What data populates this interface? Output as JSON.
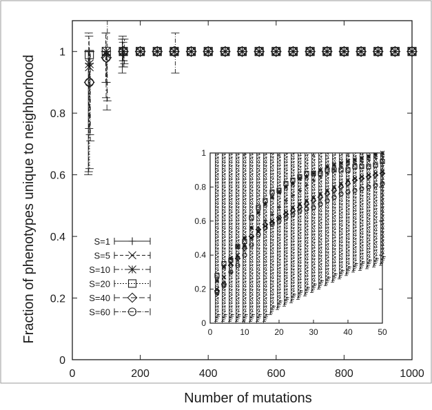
{
  "chart_data": [
    {
      "type": "scatter",
      "panel": "main",
      "xlabel": "Number of mutations",
      "ylabel": "Fraction of phenotypes unique to neighborhood",
      "xlim": [
        0,
        1000
      ],
      "ylim": [
        0,
        1.1
      ],
      "xticks": [
        "0",
        "200",
        "400",
        "600",
        "800",
        "1000"
      ],
      "yticks": [
        "0",
        "0.2",
        "0.4",
        "0.6",
        "0.8",
        "1"
      ],
      "grid": false,
      "legend": "bottom-left",
      "series": [
        {
          "name": "S=1",
          "marker": "plus",
          "dash": "",
          "points": [
            {
              "x": 50,
              "y": 1.0,
              "lo": 0.6,
              "hi": 1.0
            },
            {
              "x": 100,
              "y": 1.0,
              "lo": 1.0,
              "hi": 1.0
            },
            {
              "x": 150,
              "y": 1.0,
              "lo": 0.93,
              "hi": 1.04
            }
          ]
        },
        {
          "name": "S=5",
          "marker": "x",
          "dash": "5,3",
          "points": [
            {
              "x": 50,
              "y": 0.95,
              "lo": 0.61,
              "hi": 1.06
            },
            {
              "x": 100,
              "y": 1.0,
              "lo": 0.9,
              "hi": 1.06
            },
            {
              "x": 150,
              "y": 1.0,
              "lo": 0.95,
              "hi": 1.05
            }
          ]
        },
        {
          "name": "S=10",
          "marker": "asterisk",
          "dash": "7,3,2,3",
          "points": [
            {
              "x": 50,
              "y": 0.96,
              "lo": 0.75,
              "hi": 1.05
            },
            {
              "x": 100,
              "y": 0.99,
              "lo": 0.85,
              "hi": 1.06
            },
            {
              "x": 150,
              "y": 1.0,
              "lo": 0.97,
              "hi": 1.03
            }
          ]
        },
        {
          "name": "S=20",
          "marker": "square",
          "dash": "2,2",
          "points": [
            {
              "x": 50,
              "y": 0.99,
              "lo": 0.62,
              "hi": 1.0
            },
            {
              "x": 100,
              "y": 1.0,
              "lo": 0.9,
              "hi": 1.0
            },
            {
              "x": 150,
              "y": 1.0,
              "lo": 0.97,
              "hi": 1.0
            }
          ]
        },
        {
          "name": "S=40",
          "marker": "diamond",
          "dash": "8,4",
          "points": [
            {
              "x": 50,
              "y": 0.9,
              "lo": 0.73,
              "hi": 1.0
            },
            {
              "x": 100,
              "y": 0.98,
              "lo": 0.81,
              "hi": 1.0
            },
            {
              "x": 150,
              "y": 1.0,
              "lo": 0.95,
              "hi": 1.0
            }
          ]
        },
        {
          "name": "S=60",
          "marker": "circle",
          "dash": "6,2,1,2",
          "points": [
            {
              "x": 50,
              "y": 0.9,
              "lo": 0.71,
              "hi": 1.0
            },
            {
              "x": 100,
              "y": 0.98,
              "lo": 0.84,
              "hi": 1.1
            },
            {
              "x": 150,
              "y": 1.0,
              "lo": 0.96,
              "hi": 1.04
            },
            {
              "x": 300,
              "y": 1.0,
              "lo": 0.93,
              "hi": 1.06
            }
          ]
        }
      ],
      "constant_segment": {
        "y": 1.0,
        "x_start": 200,
        "x_end": 1000,
        "x_step": 50
      }
    },
    {
      "type": "scatter",
      "panel": "inset",
      "xlim": [
        0,
        50
      ],
      "ylim": [
        0,
        1
      ],
      "xticks": [
        "0",
        "10",
        "20",
        "30",
        "40",
        "50"
      ],
      "yticks": [
        "0",
        "0.2",
        "0.4",
        "0.6",
        "0.8",
        "1"
      ],
      "x": [
        2,
        4,
        6,
        8,
        10,
        12,
        14,
        16,
        18,
        20,
        22,
        24,
        26,
        28,
        30,
        32,
        34,
        36,
        38,
        40,
        42,
        44,
        46,
        48,
        50
      ],
      "series": [
        {
          "name": "S=1",
          "marker": "plus",
          "values": [
            0.17,
            0.24,
            0.3,
            0.38,
            0.45,
            0.5,
            0.55,
            0.6,
            0.64,
            0.68,
            0.72,
            0.75,
            0.78,
            0.81,
            0.84,
            0.86,
            0.88,
            0.9,
            0.92,
            0.93,
            0.94,
            0.95,
            0.96,
            0.97,
            0.98
          ]
        },
        {
          "name": "S=5",
          "marker": "x",
          "values": [
            0.2,
            0.27,
            0.35,
            0.4,
            0.46,
            0.5,
            0.54,
            0.57,
            0.6,
            0.62,
            0.65,
            0.68,
            0.7,
            0.72,
            0.74,
            0.76,
            0.78,
            0.8,
            0.82,
            0.84,
            0.85,
            0.86,
            0.87,
            0.88,
            0.89
          ]
        },
        {
          "name": "S=10",
          "marker": "asterisk",
          "values": [
            0.25,
            0.33,
            0.38,
            0.45,
            0.5,
            0.56,
            0.65,
            0.7,
            0.74,
            0.77,
            0.8,
            0.82,
            0.85,
            0.86,
            0.88,
            0.9,
            0.92,
            0.93,
            0.94,
            0.95,
            0.96,
            0.97,
            0.98,
            0.99,
            1.0
          ]
        },
        {
          "name": "S=20",
          "marker": "square",
          "values": [
            0.28,
            0.35,
            0.37,
            0.45,
            0.48,
            0.62,
            0.68,
            0.72,
            0.77,
            0.78,
            0.82,
            0.84,
            0.86,
            0.88,
            0.88,
            0.88,
            0.9,
            0.9,
            0.9,
            0.9,
            0.92,
            0.92,
            0.92,
            0.93,
            0.95
          ]
        },
        {
          "name": "S=40",
          "marker": "diamond",
          "values": [
            0.19,
            0.23,
            0.34,
            0.38,
            0.44,
            0.51,
            0.55,
            0.58,
            0.59,
            0.62,
            0.64,
            0.66,
            0.68,
            0.7,
            0.72,
            0.74,
            0.76,
            0.78,
            0.8,
            0.82,
            0.84,
            0.85,
            0.86,
            0.87,
            0.88
          ]
        },
        {
          "name": "S=60",
          "marker": "circle",
          "values": [
            0.18,
            0.22,
            0.3,
            0.34,
            0.4,
            0.46,
            0.52,
            0.56,
            0.58,
            0.6,
            0.62,
            0.64,
            0.66,
            0.67,
            0.68,
            0.7,
            0.72,
            0.74,
            0.76,
            0.77,
            0.78,
            0.79,
            0.8,
            0.81,
            0.82
          ]
        }
      ],
      "error_bars_upper": 1.0,
      "error_bars_lower": [
        0,
        0,
        0,
        0,
        0,
        0,
        0,
        0,
        0.05,
        0.08,
        0.1,
        0.12,
        0.14,
        0.16,
        0.18,
        0.2,
        0.22,
        0.24,
        0.26,
        0.28,
        0.3,
        0.31,
        0.32,
        0.33,
        0.34
      ]
    }
  ]
}
